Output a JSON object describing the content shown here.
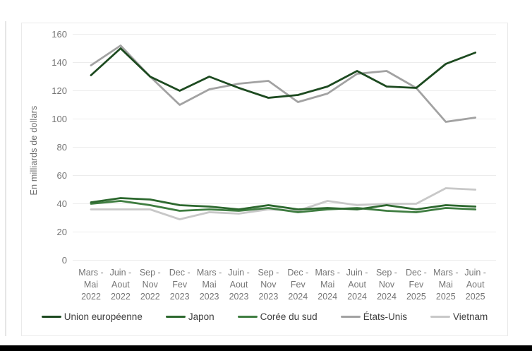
{
  "page": {
    "background": "#ffffff",
    "bottom_bar_color": "#000000"
  },
  "chart_data": {
    "type": "line",
    "title": "",
    "xlabel": "",
    "ylabel": "En milliards de dollars",
    "ylim": [
      0,
      160
    ],
    "yticks": [
      0,
      20,
      40,
      60,
      80,
      100,
      120,
      140,
      160
    ],
    "grid": "horizontal",
    "gridline_color": "#ececec",
    "legend_position": "bottom",
    "categories": [
      "Mars - Mai 2022",
      "Juin - Aout 2022",
      "Sep - Nov 2022",
      "Dec - Fev 2023",
      "Mars - Mai 2023",
      "Juin - Aout 2023",
      "Sep - Nov 2023",
      "Dec - Fev 2024",
      "Mars - Mai 2024",
      "Juin - Aout 2024",
      "Sep - Nov 2024",
      "Dec - Fev 2025",
      "Mars - Mai 2025",
      "Juin - Aout 2025"
    ],
    "categories_lines": [
      [
        "Mars -",
        "Mai",
        "2022"
      ],
      [
        "Juin -",
        "Aout",
        "2022"
      ],
      [
        "Sep -",
        "Nov",
        "2022"
      ],
      [
        "Dec -",
        "Fev",
        "2023"
      ],
      [
        "Mars -",
        "Mai",
        "2023"
      ],
      [
        "Juin -",
        "Aout",
        "2023"
      ],
      [
        "Sep -",
        "Nov",
        "2023"
      ],
      [
        "Dec -",
        "Fev",
        "2024"
      ],
      [
        "Mars -",
        "Mai",
        "2024"
      ],
      [
        "Juin -",
        "Aout",
        "2024"
      ],
      [
        "Sep -",
        "Nov",
        "2024"
      ],
      [
        "Dec -",
        "Fev",
        "2025"
      ],
      [
        "Mars -",
        "Mai",
        "2025"
      ],
      [
        "Juin -",
        "Aout",
        "2025"
      ]
    ],
    "series": [
      {
        "name": "Union européenne",
        "color": "#1d4a20",
        "values": [
          131,
          150,
          130,
          120,
          130,
          122,
          115,
          117,
          123,
          134,
          123,
          122,
          139,
          147
        ]
      },
      {
        "name": "Japon",
        "color": "#2c682e",
        "values": [
          41,
          44,
          43,
          39,
          38,
          36,
          39,
          36,
          37,
          36,
          39,
          36,
          39,
          38
        ]
      },
      {
        "name": "Corée du sud",
        "color": "#3f7d41",
        "values": [
          40,
          42,
          39,
          35,
          36,
          35,
          37,
          34,
          36,
          37,
          35,
          34,
          37,
          36
        ]
      },
      {
        "name": "États-Unis",
        "color": "#a2a2a2",
        "values": [
          138,
          152,
          130,
          110,
          121,
          125,
          127,
          112,
          118,
          132,
          134,
          122,
          98,
          101
        ]
      },
      {
        "name": "Vietnam",
        "color": "#c8c8c8",
        "values": [
          36,
          36,
          36,
          29,
          34,
          33,
          36,
          35,
          42,
          39,
          40,
          40,
          51,
          50
        ]
      }
    ],
    "draw_order": [
      3,
      4,
      2,
      1,
      0
    ]
  }
}
